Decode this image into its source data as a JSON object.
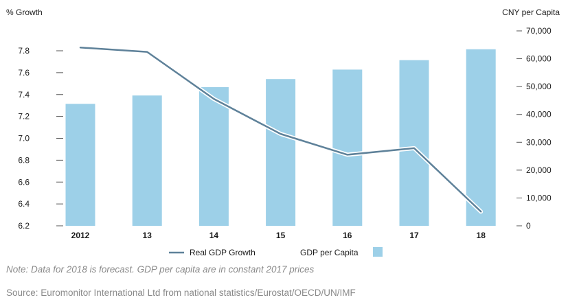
{
  "chart_data": {
    "type": "bar",
    "categories": [
      "2012",
      "13",
      "14",
      "15",
      "16",
      "17",
      "18"
    ],
    "left_axis": {
      "title": "% Growth",
      "min": 6.2,
      "max": 7.8,
      "ticks": [
        "6.2",
        "6.4",
        "6.6",
        "6.8",
        "7.0",
        "7.2",
        "7.4",
        "7.6",
        "7.8"
      ]
    },
    "right_axis": {
      "title": "CNY per Capita",
      "min": 0,
      "max": 70000,
      "ticks": [
        "0",
        "10,000",
        "20,000",
        "30,000",
        "40,000",
        "50,000",
        "60,000",
        "70,000"
      ]
    },
    "series": [
      {
        "name": "GDP per Capita",
        "type": "bar",
        "axis": "right",
        "values": [
          43800,
          46800,
          49800,
          52700,
          56100,
          59500,
          63400
        ]
      },
      {
        "name": "Real GDP Growth",
        "type": "line",
        "axis": "left",
        "values": [
          7.83,
          7.79,
          7.36,
          7.04,
          6.85,
          6.91,
          6.33
        ]
      }
    ],
    "legend_position": "bottom",
    "grid": false
  },
  "colors": {
    "bar": "#9dd0e8",
    "line": "#5e8199",
    "line_halo": "#ffffff",
    "axis_text": "#1a1a1a",
    "tick": "#555555",
    "footnote": "#8a8a8a"
  },
  "note": "Note: Data for 2018 is forecast. GDP per capita are in constant 2017 prices",
  "source": "Source: Euromonitor International Ltd from national statistics/Eurostat/OECD/UN/IMF"
}
